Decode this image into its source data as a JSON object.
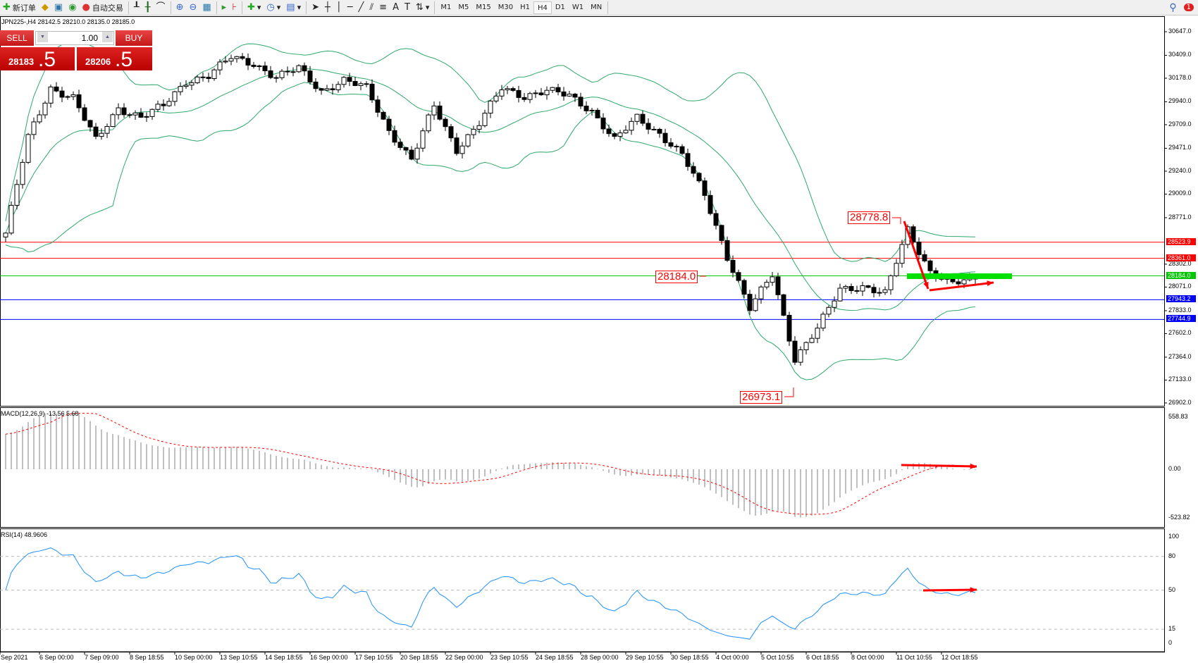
{
  "toolbar": {
    "new_order": "新订单",
    "auto_trading": "自动交易",
    "timeframes": [
      "M1",
      "M5",
      "M15",
      "M30",
      "H1",
      "H4",
      "D1",
      "W1",
      "MN"
    ],
    "active_timeframe": "H4",
    "notification_count": "1"
  },
  "chart": {
    "symbol_line": "JPN225-,H4  28142.5 28210.0 28135.0 28185.0",
    "close_path": [
      28616,
      29580,
      30080,
      29980,
      29550,
      29880,
      29780,
      29900,
      30150,
      30200,
      30390,
      30330,
      30180,
      30280,
      30050,
      30150,
      30080,
      29650,
      29350,
      29900,
      29460,
      29720,
      30080,
      30000,
      30050,
      30000,
      29850,
      29550,
      29780,
      29620,
      29400,
      29000,
      28380,
      27850,
      28200,
      27350,
      27650,
      28050,
      28080,
      28000,
      28650,
      28230,
      28100,
      28160
    ],
    "price_axis": [
      "30647.0",
      "30409.0",
      "30178.0",
      "29940.0",
      "29709.0",
      "29471.0",
      "29240.0",
      "29009.0",
      "28771.0",
      "28302.0",
      "28071.0",
      "27833.0",
      "27602.0",
      "27364.0",
      "27133.0",
      "26902.0"
    ],
    "levels": [
      {
        "value": "28523.9",
        "color": "#ff0000"
      },
      {
        "value": "28361.0",
        "color": "#ff0000"
      },
      {
        "value": "28184.0",
        "color": "#00c800"
      },
      {
        "value": "27943.2",
        "color": "#0000ff"
      },
      {
        "value": "27744.9",
        "color": "#0000ff"
      }
    ],
    "annotations": {
      "high": "28778.8",
      "mid": "28184.0",
      "low": "26973.1"
    }
  },
  "trade_panel": {
    "sell": "SELL",
    "buy": "BUY",
    "lot": "1.00",
    "bid_main": "28183",
    "bid_frac": ".5",
    "ask_main": "28206",
    "ask_frac": ".5"
  },
  "macd": {
    "label": "MACD(12,26,9) -13.56 5.68",
    "axis": [
      "558.83",
      "0.00",
      "-523.82"
    ]
  },
  "rsi": {
    "label": "RSI(14) 48.9606",
    "axis": [
      "100",
      "80",
      "50",
      "15",
      "0"
    ]
  },
  "time_axis": [
    "Sep 2021",
    "6 Sep 00:00",
    "7 Sep 09:00",
    "8 Sep 18:55",
    "10 Sep 00:00",
    "13 Sep 10:55",
    "14 Sep 18:55",
    "16 Sep 00:00",
    "17 Sep 10:55",
    "20 Sep 18:55",
    "22 Sep 00:00",
    "23 Sep 10:55",
    "24 Sep 18:55",
    "28 Sep 00:00",
    "29 Sep 10:55",
    "30 Sep 18:55",
    "4 Oct 00:00",
    "5 Oct 10:55",
    "6 Oct 18:55",
    "8 Oct 00:00",
    "11 Oct 10:55",
    "12 Oct 18:55"
  ],
  "colors": {
    "bands": "#2ea86a",
    "signal": "#ff0000",
    "histogram": "#c0c0c0",
    "rsi": "#1e90ff",
    "arrow": "#ff0000",
    "zone": "#00e000"
  }
}
